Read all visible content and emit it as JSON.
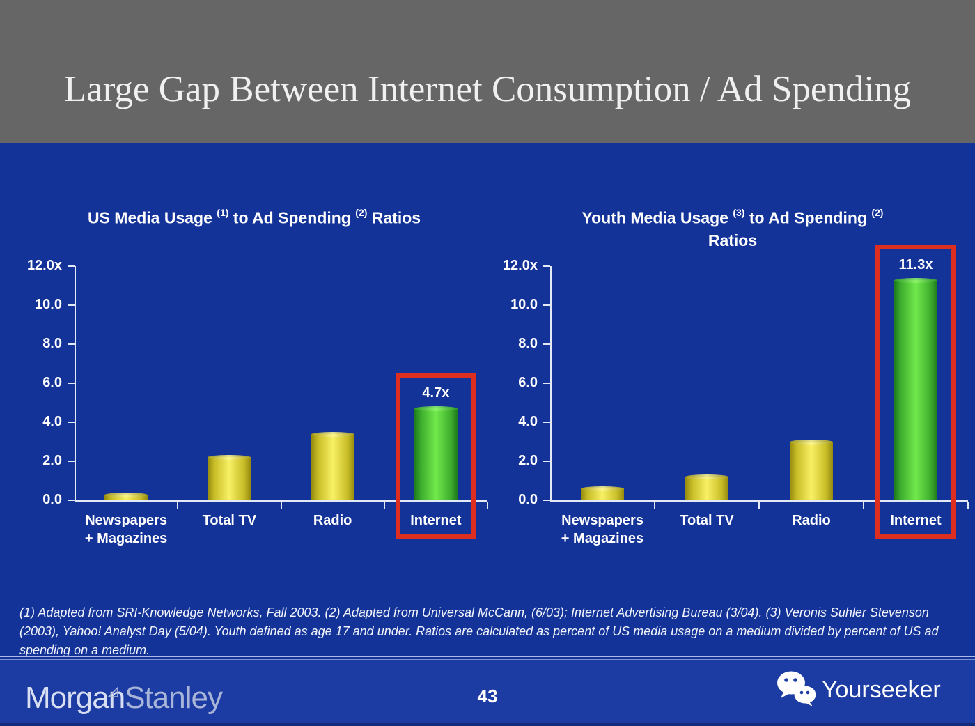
{
  "slide": {
    "title": "Large Gap Between Internet Consumption / Ad Spending",
    "footnote": "(1) Adapted from SRI-Knowledge Networks, Fall 2003.  (2) Adapted from Universal McCann, (6/03); Internet Advertising Bureau (3/04). (3) Veronis Suhler Stevenson (2003), Yahoo! Analyst Day (5/04).  Youth defined as age 17 and under.  Ratios are calculated as percent of US media usage on a medium divided by percent of US ad spending on a medium."
  },
  "footer": {
    "brand_morgan": "Morgan",
    "brand_stanley": "Stanley",
    "page_number": "43",
    "watermark_label": "Yourseeker",
    "watermark_icon": "wechat-icon",
    "brand_icon": "morgan-stanley-triangle-icon"
  },
  "colors": {
    "header_gray": "#666667",
    "background_blue": "#133399",
    "footer_blue": "#1c3ca4",
    "bar_yellow": "#f8f065",
    "bar_green": "#70e94c",
    "highlight_red": "#dd2e1f",
    "axis_white": "#e3e9f6",
    "text_white": "#ffffff"
  },
  "chart_data": [
    {
      "type": "bar",
      "title_parts": [
        {
          "text": "US Media Usage "
        },
        {
          "sup": "(1)"
        },
        {
          "text": " to Ad Spending "
        },
        {
          "sup": "(2)"
        },
        {
          "text": " Ratios"
        }
      ],
      "categories": [
        "Newspapers\n+ Magazines",
        "Total TV",
        "Radio",
        "Internet"
      ],
      "values": [
        0.3,
        2.2,
        3.4,
        4.7
      ],
      "bar_colors": [
        "yellow",
        "yellow",
        "yellow",
        "green"
      ],
      "highlight_index": 3,
      "highlight_label": "4.7x",
      "yticks": [
        "12.0x",
        "10.0",
        "8.0",
        "6.0",
        "4.0",
        "2.0",
        "0.0"
      ],
      "ylim": [
        0,
        12
      ],
      "grid": false,
      "legend": null,
      "xlabel": "",
      "ylabel": ""
    },
    {
      "type": "bar",
      "title_parts": [
        {
          "text": "Youth Media Usage "
        },
        {
          "sup": "(3)"
        },
        {
          "text": " to Ad Spending "
        },
        {
          "sup": "(2)"
        },
        {
          "break": true
        },
        {
          "text": "Ratios"
        }
      ],
      "categories": [
        "Newspapers\n+ Magazines",
        "Total TV",
        "Radio",
        "Internet"
      ],
      "values": [
        0.6,
        1.2,
        3.0,
        11.3
      ],
      "bar_colors": [
        "yellow",
        "yellow",
        "yellow",
        "green"
      ],
      "highlight_index": 3,
      "highlight_label": "11.3x",
      "yticks": [
        "12.0x",
        "10.0",
        "8.0",
        "6.0",
        "4.0",
        "2.0",
        "0.0"
      ],
      "ylim": [
        0,
        12
      ],
      "grid": false,
      "legend": null,
      "xlabel": "",
      "ylabel": ""
    }
  ]
}
